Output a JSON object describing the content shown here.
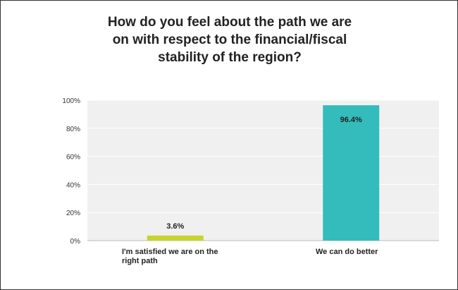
{
  "chart_data": {
    "type": "bar",
    "title_lines": [
      "How do you feel about the path we are",
      "on with respect to the financial/fiscal",
      "stability of the region?"
    ],
    "categories": [
      "I'm satisfied we are on the right path",
      "We can do better"
    ],
    "category_label_lines": [
      [
        "I'm satisfied we are on the",
        "right path"
      ],
      [
        "We can do better"
      ]
    ],
    "values": [
      3.6,
      96.4
    ],
    "data_labels": [
      "3.6%",
      "96.4%"
    ],
    "colors": [
      "#c8d42e",
      "#34bcbc"
    ],
    "ylim": [
      0,
      100
    ],
    "yticks": [
      0,
      20,
      40,
      60,
      80,
      100
    ],
    "ytick_labels": [
      "0%",
      "20%",
      "40%",
      "60%",
      "80%",
      "100%"
    ],
    "grid": true,
    "plot_background": "#f0f0f0",
    "gridline_color": "#ffffff"
  }
}
